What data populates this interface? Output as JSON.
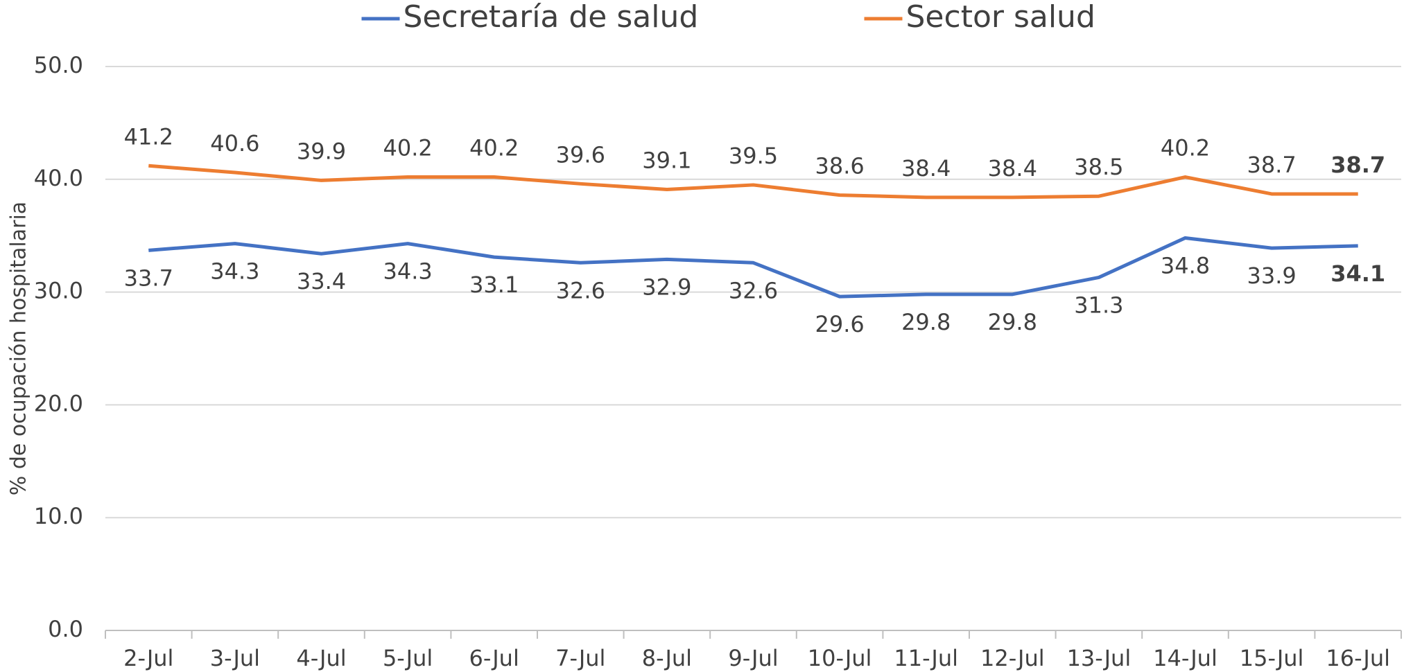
{
  "chart_data": {
    "type": "line",
    "y_label": "% de ocupación hospitalaria",
    "categories": [
      "2-Jul",
      "3-Jul",
      "4-Jul",
      "5-Jul",
      "6-Jul",
      "7-Jul",
      "8-Jul",
      "9-Jul",
      "10-Jul",
      "11-Jul",
      "12-Jul",
      "13-Jul",
      "14-Jul",
      "15-Jul",
      "16-Jul"
    ],
    "series": [
      {
        "name": "Secretaría de salud",
        "color": "#4472c4",
        "label_side": "below",
        "values": [
          33.7,
          34.3,
          33.4,
          34.3,
          33.1,
          32.6,
          32.9,
          32.6,
          29.6,
          29.8,
          29.8,
          31.3,
          34.8,
          33.9,
          34.1
        ]
      },
      {
        "name": "Sector salud",
        "color": "#ed7d31",
        "label_side": "above",
        "values": [
          41.2,
          40.6,
          39.9,
          40.2,
          40.2,
          39.6,
          39.1,
          39.5,
          38.6,
          38.4,
          38.4,
          38.5,
          40.2,
          38.7,
          38.7
        ]
      }
    ],
    "ylim": [
      0,
      50
    ],
    "yticks": [
      {
        "value": 0,
        "label": "0.0"
      },
      {
        "value": 10,
        "label": "10.0"
      },
      {
        "value": 20,
        "label": "20.0"
      },
      {
        "value": 30,
        "label": "30.0"
      },
      {
        "value": 40,
        "label": "40.0"
      },
      {
        "value": 50,
        "label": "50.0"
      }
    ],
    "grid": true,
    "legend": "top"
  }
}
